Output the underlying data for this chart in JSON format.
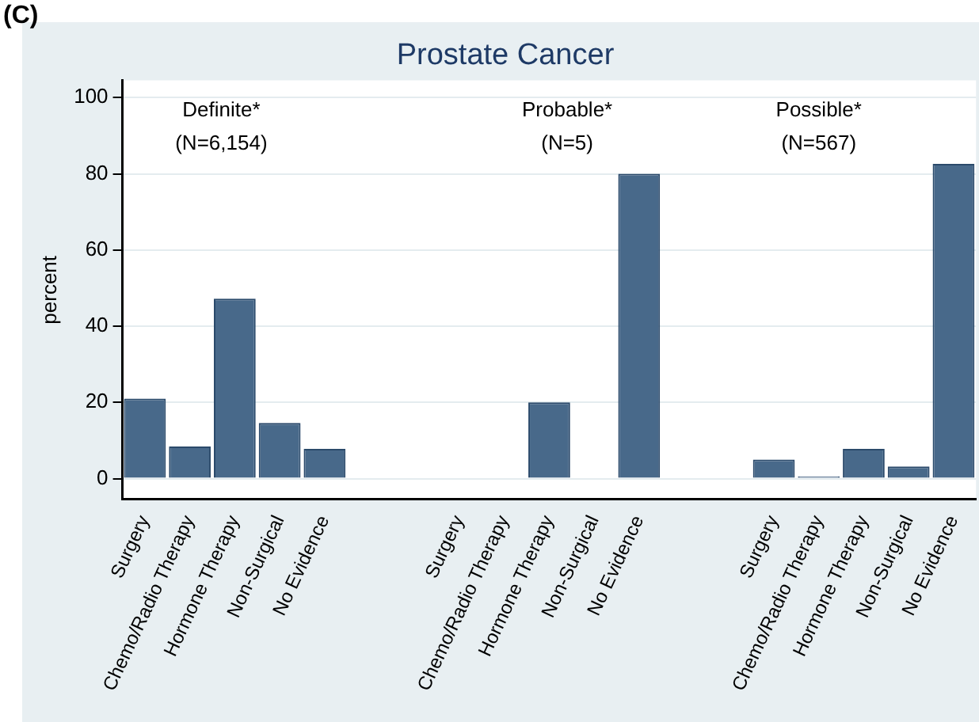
{
  "chart_data": {
    "type": "bar",
    "title": "Prostate Cancer",
    "ylabel": "percent",
    "categories": [
      "Surgery",
      "Chemo/Radio Therapy",
      "Hormone Therapy",
      "Non-Surgical",
      "No Evidence",
      null,
      null,
      "Surgery",
      "Chemo/Radio Therapy",
      "Hormone Therapy",
      "Non-Surgical",
      "No Evidence",
      null,
      null,
      "Surgery",
      "Chemo/Radio Therapy",
      "Hormone Therapy",
      "Non-Surgical",
      "No Evidence"
    ],
    "values": [
      21,
      8.4,
      47.2,
      14.6,
      7.8,
      null,
      null,
      0,
      0,
      20,
      0,
      80,
      null,
      null,
      5,
      0.6,
      7.8,
      3.2,
      82.6
    ],
    "color": "#48698a",
    "ylim": [
      -5.5,
      104.5
    ],
    "yticks": [
      0,
      20,
      40,
      60,
      80,
      100
    ],
    "grid": "y",
    "annotations": [
      "(C)",
      "Definite*\n(N=6,154)",
      "Probable*\n(N=5)",
      "Possible*\n(N=567)"
    ]
  }
}
